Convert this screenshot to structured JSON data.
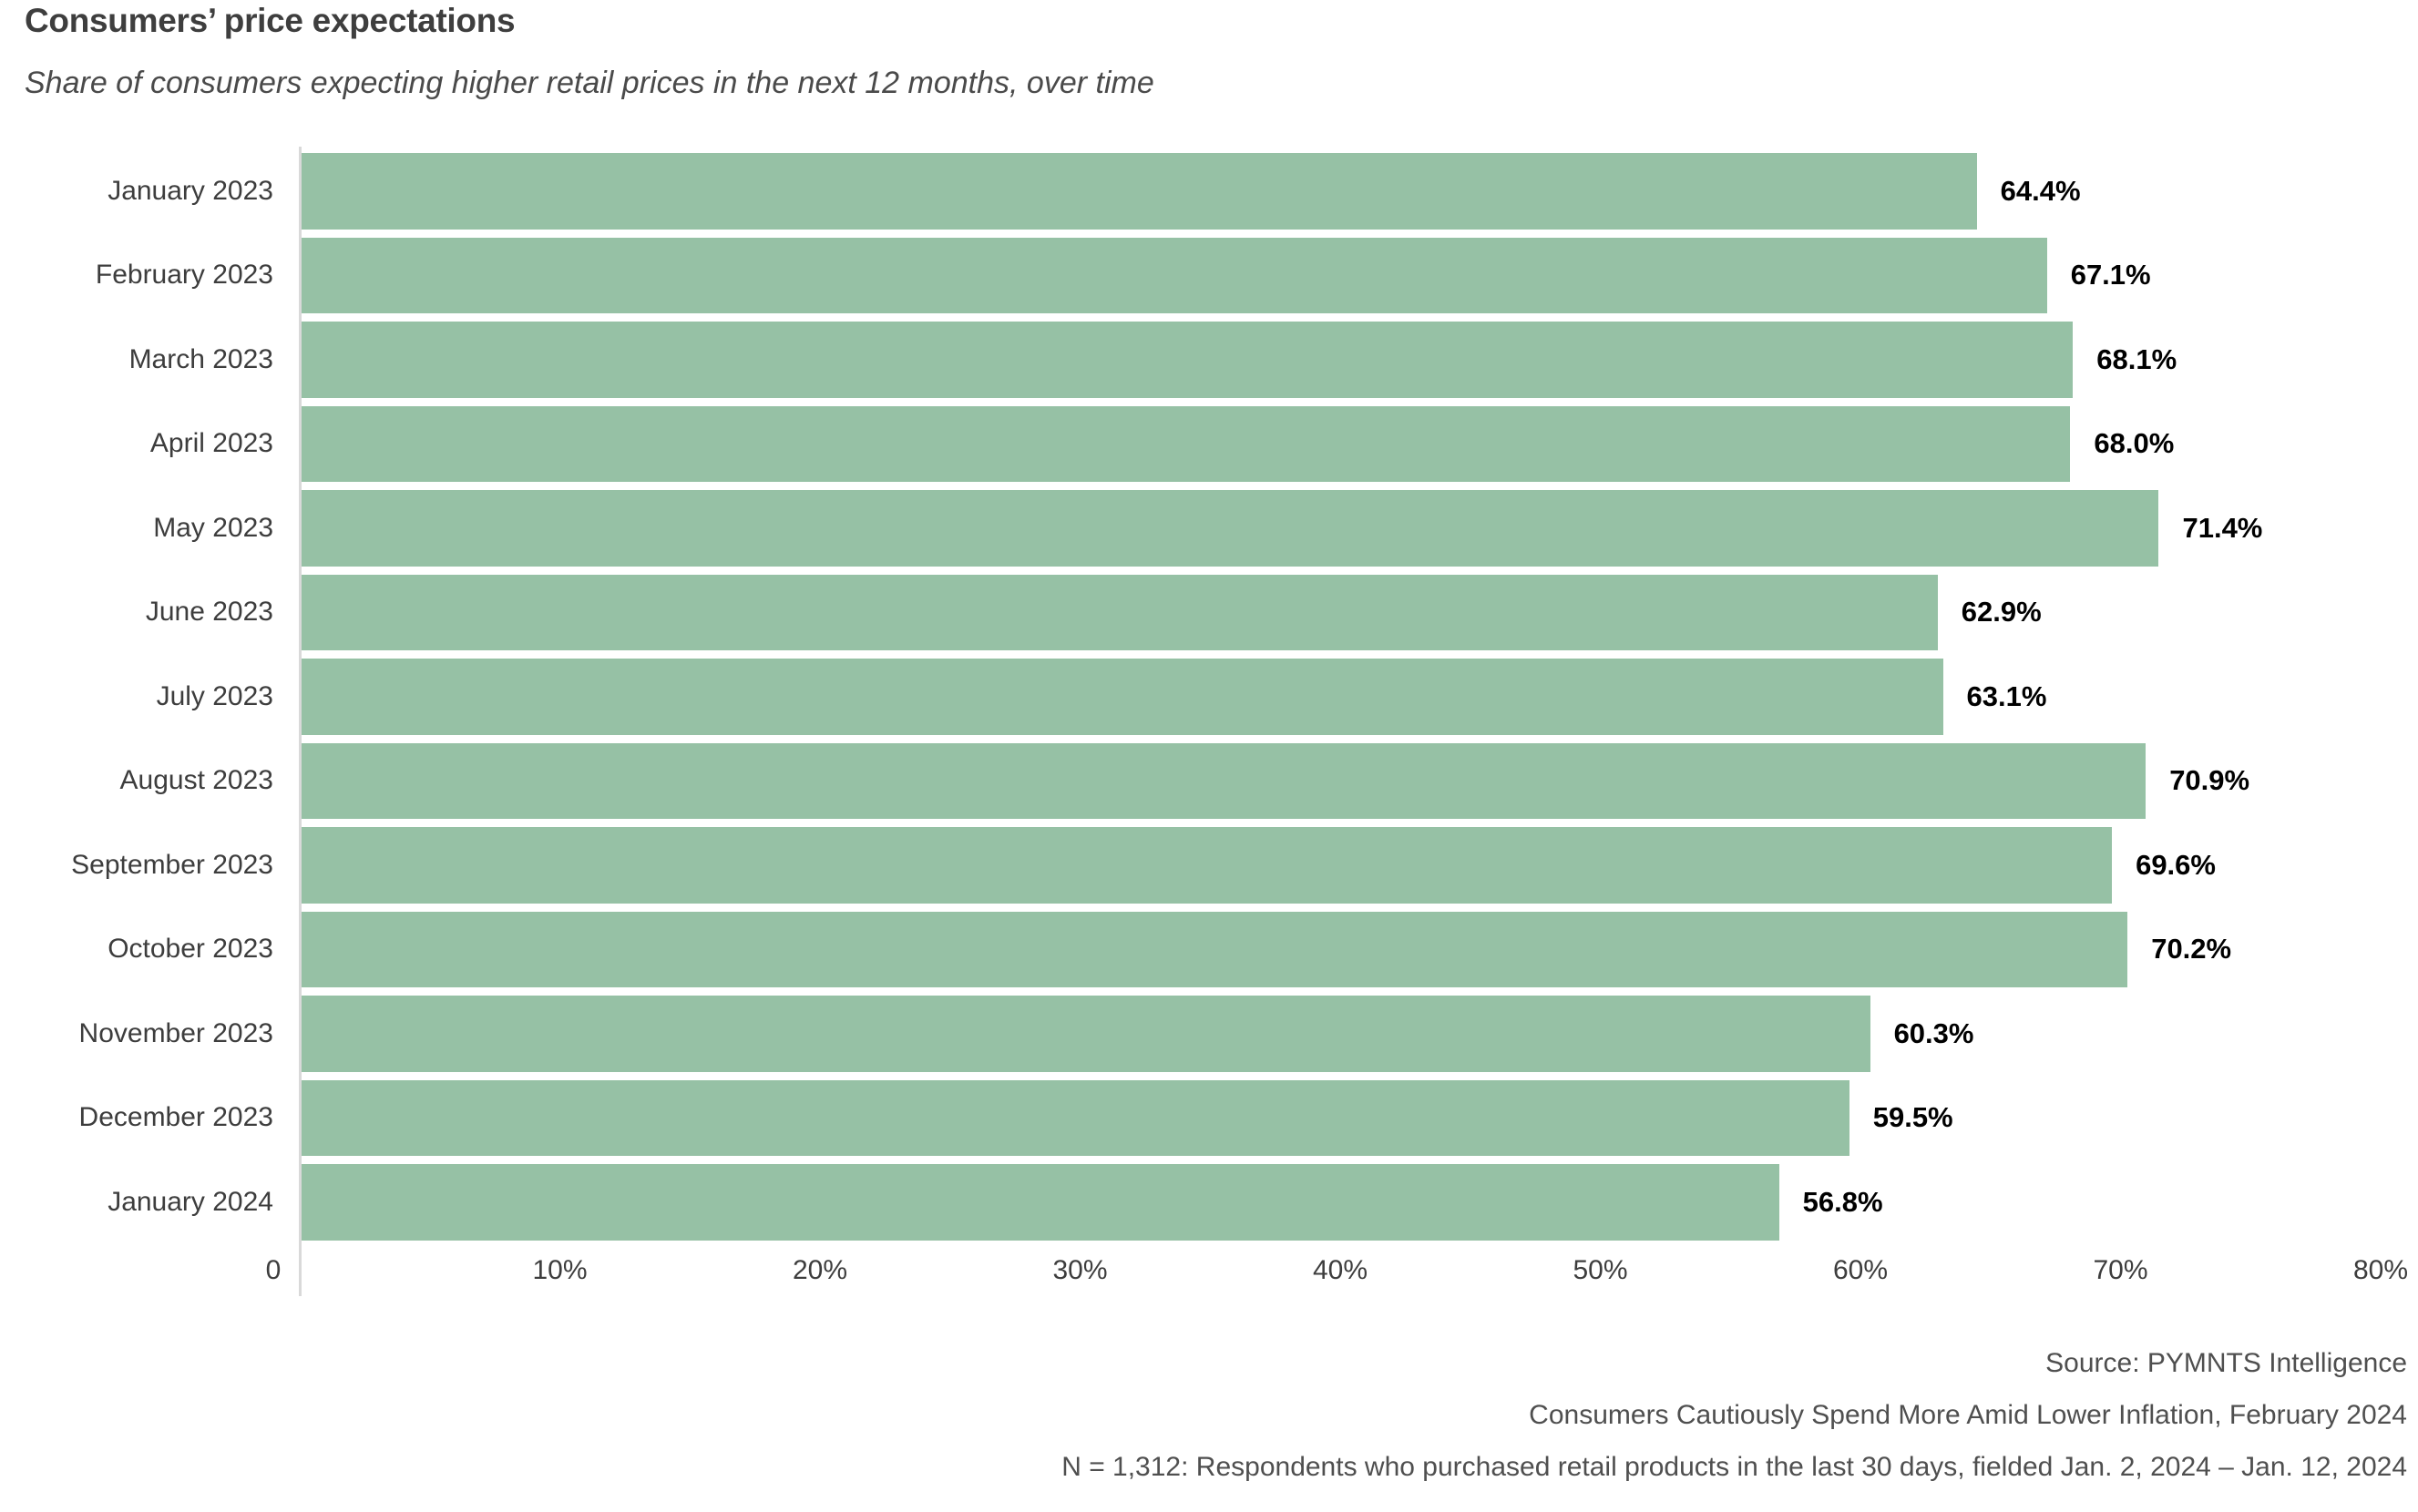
{
  "header": {
    "title": "Consumers’ price expectations",
    "subtitle": "Share of consumers expecting higher retail prices in the next 12 months, over time"
  },
  "chart_data": {
    "type": "bar",
    "orientation": "horizontal",
    "title": "Consumers’ price expectations",
    "subtitle": "Share of consumers expecting higher retail prices in the next 12 months, over time",
    "categories": [
      "January 2023",
      "February 2023",
      "March 2023",
      "April 2023",
      "May 2023",
      "June 2023",
      "July 2023",
      "August 2023",
      "September 2023",
      "October 2023",
      "November 2023",
      "December 2023",
      "January 2024"
    ],
    "values": [
      64.4,
      67.1,
      68.1,
      68.0,
      71.4,
      62.9,
      63.1,
      70.9,
      69.6,
      70.2,
      60.3,
      59.5,
      56.8
    ],
    "value_labels": [
      "64.4%",
      "67.1%",
      "68.1%",
      "68.0%",
      "71.4%",
      "62.9%",
      "63.1%",
      "70.9%",
      "69.6%",
      "70.2%",
      "60.3%",
      "59.5%",
      "56.8%"
    ],
    "xlabel": "",
    "ylabel": "",
    "xlim": [
      0,
      80
    ],
    "xticks": [
      {
        "label": "0",
        "value": 0
      },
      {
        "label": "10%",
        "value": 10
      },
      {
        "label": "20%",
        "value": 20
      },
      {
        "label": "30%",
        "value": 30
      },
      {
        "label": "40%",
        "value": 40
      },
      {
        "label": "50%",
        "value": 50
      },
      {
        "label": "60%",
        "value": 60
      },
      {
        "label": "70%",
        "value": 70
      },
      {
        "label": "80%",
        "value": 80
      }
    ],
    "grid": false,
    "legend": false
  },
  "footer": {
    "lines": [
      "Source: PYMNTS Intelligence",
      "Consumers Cautiously Spend More Amid Lower Inflation, February 2024",
      "N = 1,312: Respondents who purchased retail products in the last 30 days, fielded Jan. 2, 2024 – Jan. 12, 2024"
    ]
  },
  "colors": {
    "bar": "#96c1a5",
    "axis_line": "#d9d9d9",
    "title_text": "#3e3e3e",
    "subtitle_text": "#4a4a4a",
    "label_text": "#3d3d3d",
    "value_text": "#000000",
    "footer_text": "#4f4f4f"
  }
}
